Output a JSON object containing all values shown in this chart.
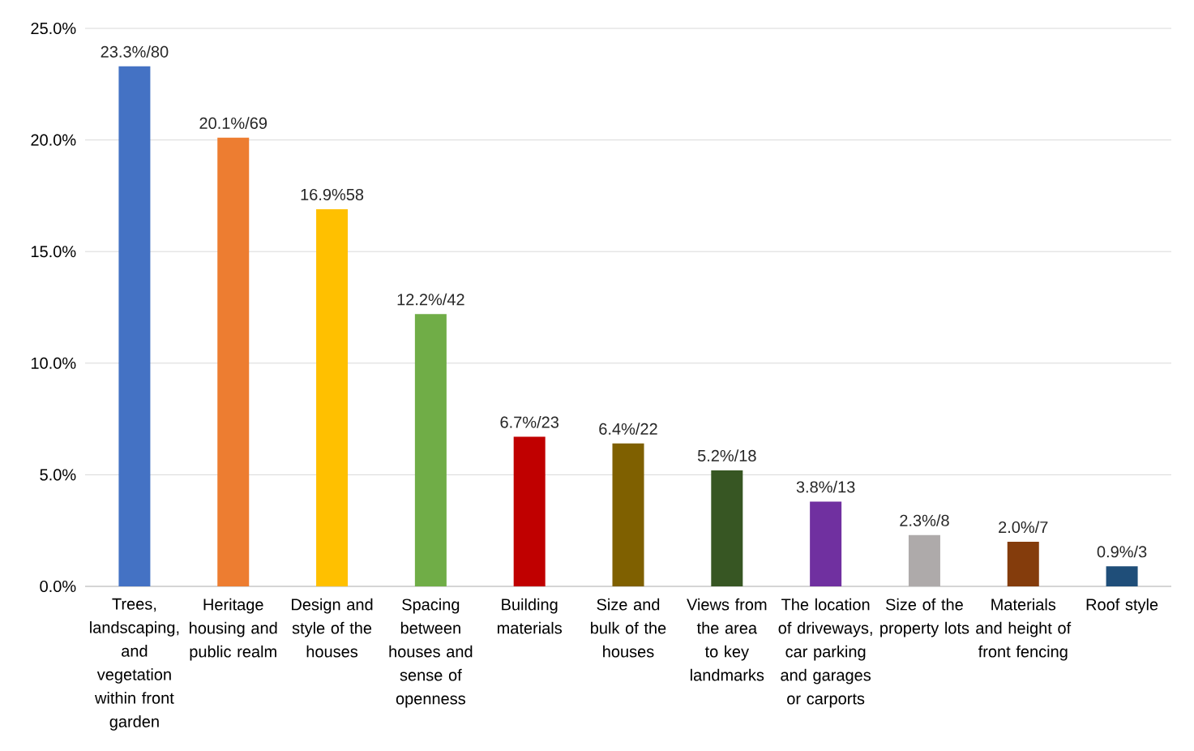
{
  "chart_data": {
    "type": "bar",
    "categories": [
      "Trees, landscaping, and vegetation within front garden",
      "Heritage housing and public realm",
      "Design and style of the houses",
      "Spacing between houses and sense of openness",
      "Building materials",
      "Size and bulk of the houses",
      "Views from the area to key landmarks",
      "The location of driveways, car parking and garages or carports",
      "Size of the property lots",
      "Materials and height of front fencing",
      "Roof style"
    ],
    "values": [
      23.3,
      20.1,
      16.9,
      12.2,
      6.7,
      6.4,
      5.2,
      3.8,
      2.3,
      2.0,
      0.9
    ],
    "value_labels": [
      "23.3%/80",
      "20.1%/69",
      "16.9%58",
      "12.2%/42",
      "6.7%/23",
      "6.4%/22",
      "5.2%/18",
      "3.8%/13",
      "2.3%/8",
      "2.0%/7",
      "0.9%/3"
    ],
    "colors": [
      "#4472c4",
      "#ed7d31",
      "#ffc000",
      "#70ad47",
      "#c00000",
      "#7f6000",
      "#375623",
      "#7030a0",
      "#aeaaaa",
      "#843c0c",
      "#1f4e79"
    ],
    "ylim": [
      0,
      25
    ],
    "yticks": [
      {
        "value": 0,
        "label": "0.0%"
      },
      {
        "value": 5,
        "label": "5.0%"
      },
      {
        "value": 10,
        "label": "10.0%"
      },
      {
        "value": 15,
        "label": "15.0%"
      },
      {
        "value": 20,
        "label": "20.0%"
      },
      {
        "value": 25,
        "label": "25.0%"
      }
    ],
    "grid": "y"
  }
}
